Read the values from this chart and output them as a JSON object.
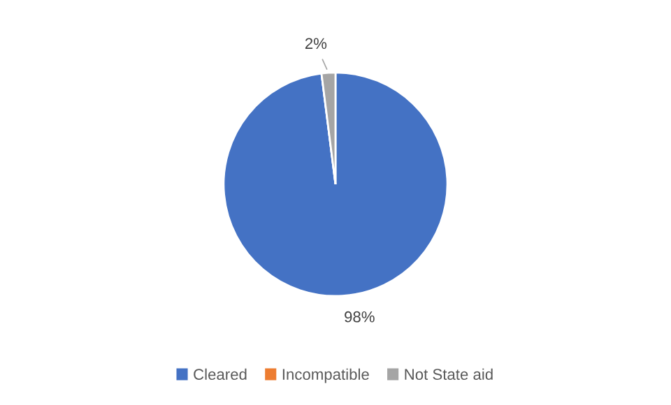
{
  "chart_data": {
    "type": "pie",
    "categories": [
      "Cleared",
      "Incompatible",
      "Not State aid"
    ],
    "values": [
      98,
      0,
      2
    ],
    "colors": [
      "#4472c4",
      "#ed7d31",
      "#a5a5a5"
    ],
    "value_labels": [
      "98%",
      null,
      "2%"
    ],
    "legend": "bottom"
  }
}
